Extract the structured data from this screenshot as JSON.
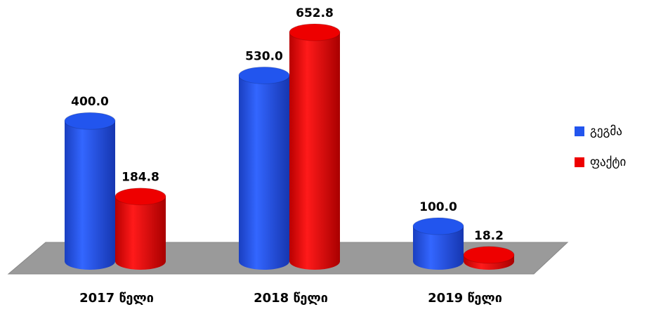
{
  "chart_data": {
    "type": "bar3d",
    "categories": [
      "2017 წელი",
      "2018 წელი",
      "2019 წელი"
    ],
    "series": [
      {
        "name": "გეგმა",
        "color": "#2255ee",
        "values": [
          400,
          530,
          100
        ],
        "value_labels": [
          "400.0",
          "530.0",
          "100.0"
        ]
      },
      {
        "name": "ფაქტი",
        "color": "#ee0000",
        "values": [
          184.8,
          652.8,
          18.2
        ],
        "value_labels": [
          "184.8",
          "652.8",
          "18.2"
        ]
      }
    ],
    "legend": "right"
  }
}
